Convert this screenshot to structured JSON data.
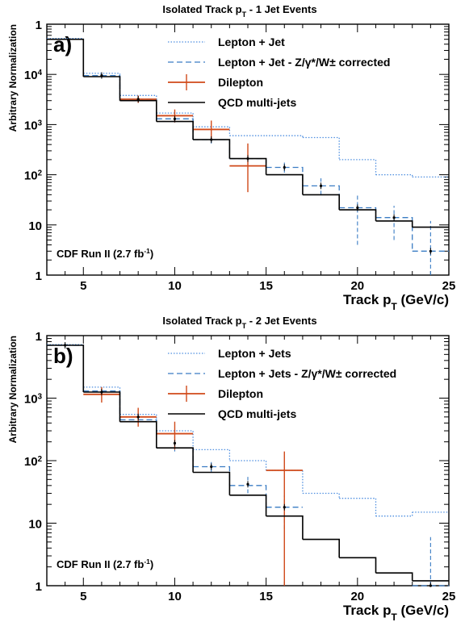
{
  "chart_data": [
    {
      "type": "histogram",
      "panel_label": "a)",
      "title": "Isolated Track p",
      "title_sub": "T",
      "title_rest": " - 1 Jet Events",
      "xlabel": "Track p",
      "xlabel_sub": "T",
      "xlabel_rest": " (GeV/c)",
      "ylabel": "Arbitrary Normalization",
      "annotation": "CDF Run II (2.7 fb",
      "annotation_sup": "-1",
      "annotation_end": ")",
      "y_scale": "log",
      "xlim": [
        3,
        25
      ],
      "ylim": [
        1,
        100000
      ],
      "x_ticks": [
        "5",
        "10",
        "15",
        "20",
        "25"
      ],
      "y_ticks": [
        {
          "value": 1,
          "base": "1",
          "exp": ""
        },
        {
          "value": 10,
          "base": "10",
          "exp": ""
        },
        {
          "value": 100,
          "base": "10",
          "exp": "2"
        },
        {
          "value": 1000,
          "base": "10",
          "exp": "3"
        },
        {
          "value": 10000,
          "base": "10",
          "exp": "4"
        },
        {
          "value": 100000,
          "base": "1",
          "exp": ""
        }
      ],
      "bin_edges": [
        3,
        5,
        7,
        9,
        11,
        13,
        15,
        17,
        19,
        21,
        23,
        25
      ],
      "series": [
        {
          "name": "Lepton + Jet",
          "style": "dotted",
          "color": "#4f8fe0",
          "values": [
            52000,
            10500,
            3800,
            1700,
            900,
            600,
            600,
            550,
            200,
            100,
            90
          ]
        },
        {
          "name": "Lepton + Jet - Z/γ*/W± corrected",
          "style": "dashed",
          "color": "#3a7cc4",
          "values": [
            50000,
            9500,
            3200,
            1300,
            500,
            210,
            140,
            60,
            22,
            14,
            3
          ]
        },
        {
          "name": "Dilepton",
          "style": "errorbar",
          "color": "#d04a1a",
          "points": [
            {
              "x": 8,
              "y": 3200,
              "xerr": 1,
              "ylo": 2700,
              "yhi": 3800
            },
            {
              "x": 10,
              "y": 1500,
              "xerr": 1,
              "ylo": 1100,
              "yhi": 2000
            },
            {
              "x": 12,
              "y": 800,
              "xerr": 1,
              "ylo": 500,
              "yhi": 1200
            },
            {
              "x": 14,
              "y": 150,
              "xerr": 1,
              "ylo": 45,
              "yhi": 420
            }
          ]
        },
        {
          "name": "QCD multi-jets",
          "style": "solid",
          "color": "#000000",
          "values": [
            50000,
            9000,
            3000,
            1150,
            500,
            210,
            100,
            40,
            20,
            12,
            9
          ]
        }
      ],
      "points_black": [
        {
          "x": 6,
          "y": 9500,
          "ylo": 8500,
          "yhi": 10800
        },
        {
          "x": 8,
          "y": 3200,
          "ylo": 2800,
          "yhi": 3600
        },
        {
          "x": 10,
          "y": 1300,
          "ylo": 1100,
          "yhi": 1550
        },
        {
          "x": 12,
          "y": 500,
          "ylo": 420,
          "yhi": 600
        },
        {
          "x": 14,
          "y": 210,
          "ylo": 160,
          "yhi": 280
        },
        {
          "x": 16,
          "y": 140,
          "ylo": 110,
          "yhi": 175
        },
        {
          "x": 18,
          "y": 60,
          "ylo": 40,
          "yhi": 85
        },
        {
          "x": 20,
          "y": 22,
          "ylo": 4,
          "yhi": 40
        },
        {
          "x": 22,
          "y": 14,
          "ylo": 5,
          "yhi": 24
        },
        {
          "x": 24,
          "y": 3,
          "ylo": 1,
          "yhi": 12
        }
      ]
    },
    {
      "type": "histogram",
      "panel_label": "b)",
      "title": "Isolated Track p",
      "title_sub": "T",
      "title_rest": " - 2 Jet Events",
      "xlabel": "Track p",
      "xlabel_sub": "T",
      "xlabel_rest": " (GeV/c)",
      "ylabel": "Arbitrary Normalization",
      "annotation": "CDF Run II (2.7 fb",
      "annotation_sup": "-1",
      "annotation_end": ")",
      "y_scale": "log",
      "xlim": [
        3,
        25
      ],
      "ylim": [
        1,
        10000
      ],
      "x_ticks": [
        "5",
        "10",
        "15",
        "20",
        "25"
      ],
      "y_ticks": [
        {
          "value": 1,
          "base": "1",
          "exp": ""
        },
        {
          "value": 10,
          "base": "10",
          "exp": ""
        },
        {
          "value": 100,
          "base": "10",
          "exp": "2"
        },
        {
          "value": 1000,
          "base": "10",
          "exp": "3"
        },
        {
          "value": 10000,
          "base": "1",
          "exp": ""
        }
      ],
      "bin_edges": [
        3,
        5,
        7,
        9,
        11,
        13,
        15,
        17,
        19,
        21,
        23,
        25
      ],
      "series": [
        {
          "name": "Lepton + Jets",
          "style": "dotted",
          "color": "#4f8fe0",
          "values": [
            7200,
            1500,
            550,
            300,
            150,
            100,
            70,
            30,
            25,
            13,
            15
          ]
        },
        {
          "name": "Lepton + Jets - Z/γ*/W± corrected",
          "style": "dashed",
          "color": "#3a7cc4",
          "values": [
            7000,
            1300,
            450,
            160,
            80,
            40,
            18,
            0,
            0,
            0,
            1
          ]
        },
        {
          "name": "Dilepton",
          "style": "errorbar",
          "color": "#d04a1a",
          "points": [
            {
              "x": 6,
              "y": 1150,
              "xerr": 1,
              "ylo": 850,
              "yhi": 1500
            },
            {
              "x": 8,
              "y": 500,
              "xerr": 1,
              "ylo": 350,
              "yhi": 700
            },
            {
              "x": 10,
              "y": 270,
              "xerr": 1,
              "ylo": 150,
              "yhi": 420
            },
            {
              "x": 16,
              "y": 70,
              "xerr": 1,
              "ylo": 1,
              "yhi": 140
            }
          ]
        },
        {
          "name": "QCD multi-jets",
          "style": "solid",
          "color": "#000000",
          "values": [
            7000,
            1250,
            420,
            160,
            65,
            28,
            13,
            5.5,
            2.8,
            1.6,
            1.2
          ]
        }
      ],
      "points_black": [
        {
          "x": 4,
          "y": 7000,
          "ylo": 6500,
          "yhi": 7500
        },
        {
          "x": 6,
          "y": 1250,
          "ylo": 1050,
          "yhi": 1450
        },
        {
          "x": 8,
          "y": 500,
          "ylo": 400,
          "yhi": 600
        },
        {
          "x": 10,
          "y": 190,
          "ylo": 140,
          "yhi": 240
        },
        {
          "x": 12,
          "y": 80,
          "ylo": 65,
          "yhi": 95
        },
        {
          "x": 14,
          "y": 42,
          "ylo": 30,
          "yhi": 55
        },
        {
          "x": 16,
          "y": 18,
          "ylo": 8,
          "yhi": 28
        },
        {
          "x": 24,
          "y": 1,
          "ylo": 0.8,
          "yhi": 6
        }
      ]
    }
  ]
}
